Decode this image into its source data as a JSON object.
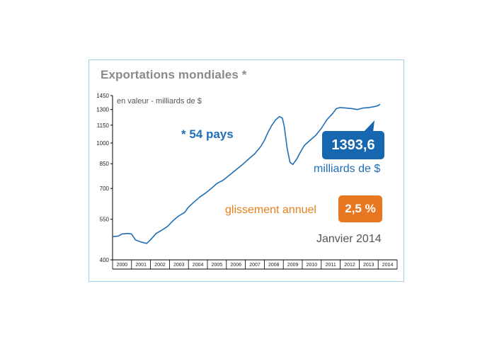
{
  "chart_data": {
    "type": "line",
    "title": "Exportations mondiales *",
    "ylabel": "en valeur - milliards de $",
    "note": "* 54 pays",
    "yscale": "log",
    "ylim": [
      400,
      1450
    ],
    "yticks": [
      400,
      550,
      700,
      850,
      1000,
      1150,
      1300,
      1450
    ],
    "xlim": [
      2000,
      2015
    ],
    "x_categories": [
      "2000",
      "2001",
      "2002",
      "2003",
      "2004",
      "2005",
      "2006",
      "2007",
      "2008",
      "2009",
      "2010",
      "2011",
      "2012",
      "2013",
      "2014"
    ],
    "grid": false,
    "series": [
      {
        "points": [
          [
            2000.0,
            480
          ],
          [
            2000.3,
            482
          ],
          [
            2000.5,
            490
          ],
          [
            2000.8,
            492
          ],
          [
            2001.0,
            490
          ],
          [
            2001.2,
            468
          ],
          [
            2001.5,
            460
          ],
          [
            2001.8,
            455
          ],
          [
            2002.0,
            468
          ],
          [
            2002.3,
            492
          ],
          [
            2002.6,
            505
          ],
          [
            2002.9,
            520
          ],
          [
            2003.2,
            545
          ],
          [
            2003.5,
            565
          ],
          [
            2003.8,
            580
          ],
          [
            2004.0,
            605
          ],
          [
            2004.3,
            630
          ],
          [
            2004.6,
            655
          ],
          [
            2004.9,
            675
          ],
          [
            2005.2,
            700
          ],
          [
            2005.5,
            728
          ],
          [
            2005.8,
            745
          ],
          [
            2006.0,
            762
          ],
          [
            2006.3,
            790
          ],
          [
            2006.6,
            820
          ],
          [
            2006.9,
            850
          ],
          [
            2007.2,
            885
          ],
          [
            2007.5,
            920
          ],
          [
            2007.8,
            970
          ],
          [
            2008.0,
            1020
          ],
          [
            2008.2,
            1090
          ],
          [
            2008.4,
            1150
          ],
          [
            2008.6,
            1200
          ],
          [
            2008.8,
            1230
          ],
          [
            2008.95,
            1215
          ],
          [
            2009.05,
            1140
          ],
          [
            2009.2,
            960
          ],
          [
            2009.35,
            860
          ],
          [
            2009.5,
            845
          ],
          [
            2009.7,
            880
          ],
          [
            2009.9,
            930
          ],
          [
            2010.1,
            980
          ],
          [
            2010.4,
            1020
          ],
          [
            2010.7,
            1060
          ],
          [
            2011.0,
            1120
          ],
          [
            2011.3,
            1200
          ],
          [
            2011.6,
            1260
          ],
          [
            2011.8,
            1310
          ],
          [
            2012.0,
            1320
          ],
          [
            2012.3,
            1315
          ],
          [
            2012.6,
            1310
          ],
          [
            2012.9,
            1300
          ],
          [
            2013.2,
            1315
          ],
          [
            2013.5,
            1320
          ],
          [
            2013.8,
            1330
          ],
          [
            2014.0,
            1340
          ],
          [
            2014.1,
            1355
          ]
        ]
      }
    ],
    "callout": {
      "value": "1393,6",
      "value_unit": "milliards de $",
      "yoy_label": "glissement annuel",
      "yoy_value": "2,5 %",
      "date": "Janvier 2014"
    }
  },
  "colors": {
    "line": "#1f6fb6",
    "badge_blue": "#1766b0",
    "badge_orange": "#e87722",
    "frame": "#9fd2e6"
  }
}
